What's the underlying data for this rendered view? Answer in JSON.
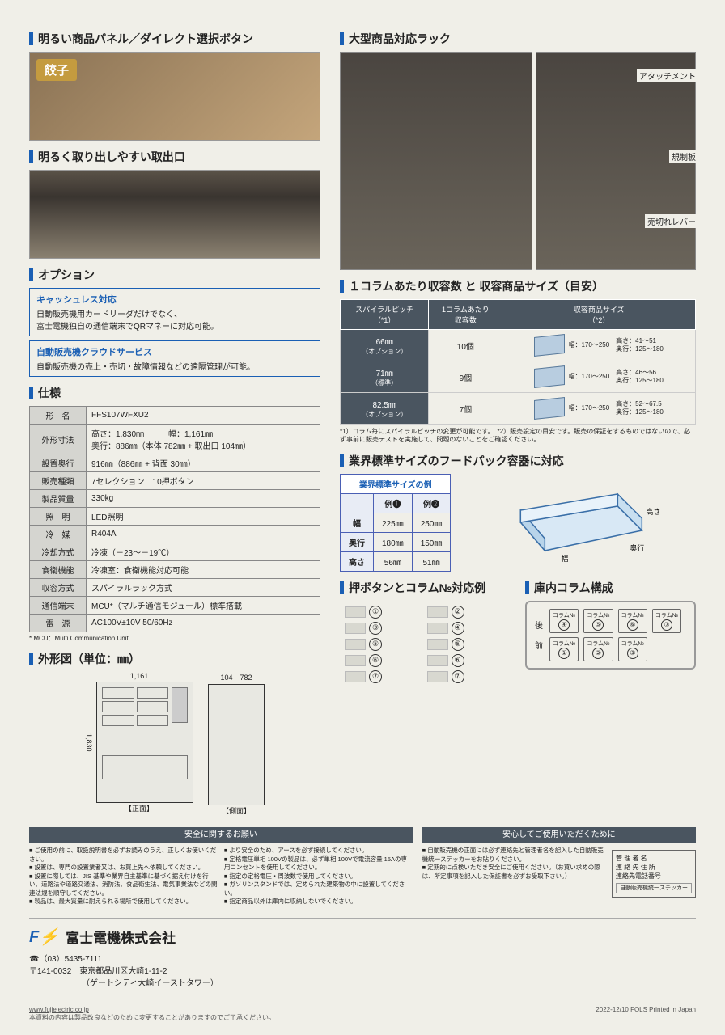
{
  "h": {
    "panel": "明るい商品パネル／ダイレクト選択ボタン",
    "outlet": "明るく取り出しやすい取出口",
    "rack": "大型商品対応ラック",
    "option": "オプション",
    "spec": "仕様",
    "diagram": "外形図（単位：㎜）",
    "capacity": "１コラムあたり収容数 と 収容商品サイズ（目安）",
    "foodpack": "業界標準サイズのフードパック容器に対応",
    "btncol": "押ボタンとコラム№対応例",
    "colstruct": "庫内コラム構成"
  },
  "gyoza": "餃子",
  "rack_labels": [
    "アタッチメント",
    "規制板",
    "売切れレバー"
  ],
  "options": [
    {
      "t": "キャッシュレス対応",
      "d": "自動販売機用カードリーダだけでなく、\n富士電機独自の通信端末でQRマネーに対応可能。"
    },
    {
      "t": "自動販売機クラウドサービス",
      "d": "自動販売機の売上・売切・故障情報などの遠隔管理が可能。"
    }
  ],
  "spec": [
    [
      "形　名",
      "FFS107WFXU2"
    ],
    [
      "外形寸法",
      "高さ：1,830㎜　　　幅：1,161㎜\n奥行：886㎜（本体 782㎜ + 取出口 104㎜）"
    ],
    [
      "設置奥行",
      "916㎜（886㎜ + 背面 30㎜）"
    ],
    [
      "販売種類",
      "7セレクション　10押ボタン"
    ],
    [
      "製品質量",
      "330kg"
    ],
    [
      "照　明",
      "LED照明"
    ],
    [
      "冷　媒",
      "R404A"
    ],
    [
      "冷却方式",
      "冷凍（－23～－19℃）"
    ],
    [
      "食衛機能",
      "冷凍室：食衛機能対応可能"
    ],
    [
      "収容方式",
      "スパイラルラック方式"
    ],
    [
      "通信端末",
      "MCU*（マルチ通信モジュール）標準搭載"
    ],
    [
      "電　源",
      "AC100V±10V 50/60Hz"
    ]
  ],
  "spec_note": "* MCU：Multi Communication Unit",
  "diagram": {
    "w": "1,161",
    "h": "1,830",
    "d1": "104",
    "d2": "782",
    "front": "【正面】",
    "side": "【側面】"
  },
  "cap_head": [
    "スパイラルピッチ\n（*1）",
    "1コラムあたり\n収容数",
    "収容商品サイズ\n（*2）"
  ],
  "cap": [
    {
      "p": "66㎜",
      "ps": "（オプション）",
      "n": "10個",
      "w": "幅：170～250",
      "h": "高さ：41～51",
      "d": "奥行：125～180"
    },
    {
      "p": "71㎜",
      "ps": "（標準）",
      "n": "9個",
      "w": "幅：170～250",
      "h": "高さ：46～56",
      "d": "奥行：125～180"
    },
    {
      "p": "82.5㎜",
      "ps": "（オプション）",
      "n": "7個",
      "w": "幅：170～250",
      "h": "高さ：52～67.5",
      "d": "奥行：125～180"
    }
  ],
  "cap_note": "*1）コラム毎にスパイラルピッチの変更が可能です。　*2）販売設定の目安です。販売の保証をするものではないので、必ず事前に販売テストを実施して、問題のないことをご確認ください。",
  "std_title": "業界標準サイズの例",
  "std_head": [
    "",
    "例❶",
    "例❷"
  ],
  "std": [
    [
      "幅",
      "225㎜",
      "250㎜"
    ],
    [
      "奥行",
      "180㎜",
      "150㎜"
    ],
    [
      "高さ",
      "56㎜",
      "51㎜"
    ]
  ],
  "std_dims": [
    "幅",
    "奥行",
    "高さ"
  ],
  "btns": [
    "①",
    "②",
    "③",
    "④",
    "⑤",
    "⑤",
    "⑥",
    "⑥",
    "⑦",
    "⑦"
  ],
  "colstruct": {
    "back": "後",
    "front": "前",
    "row1": [
      "④",
      "⑤",
      "⑥",
      "⑦"
    ],
    "row2": [
      "①",
      "②",
      "③"
    ],
    "lbl": "コラム№"
  },
  "safety": {
    "h1": "安全に関するお願い",
    "h2": "安心してご使用いただくために",
    "c1": [
      "ご使用の前に、取扱説明書を必ずお読みのうえ、正しくお使いください。",
      "設置は、専門の設置業者又は、お買上先へ依頼してください。",
      "設置に際しては、JIS 基準や業界自主基準に基づく据え付けを行い、道路法や道路交通法、消防法、食品衛生法、電気事業法などの関連法規を順守してください。",
      "製品は、最大質量に耐えられる場所で使用してください。"
    ],
    "c2": [
      "より安全のため、アースを必ず接続してください。",
      "定格電圧単相 100Vの製品は、必ず単相 100Vで電流容量 15Aの専用コンセントを使用してください。",
      "指定の定格電圧・周波数で使用してください。",
      "ガソリンスタンドでは、定められた建築物の中に設置してください。",
      "指定商品以外は庫内に収納しないでください。"
    ],
    "c3": [
      "自動販売機の正面には必ず連絡先と管理者名を記入した自動販売機統一ステッカーをお貼りください。",
      "定期的に点検いただき安全にご使用ください。（お買い求めの際は、所定事項を記入した保証書を必ずお受取下さい。）"
    ],
    "mgr": [
      "管 理 者 名",
      "連 絡 先 住 所",
      "連絡先電話番号"
    ],
    "sticker": "自動販売機統一ステッカー"
  },
  "footer": {
    "company": "富士電機株式会社",
    "tel": "☎（03）5435-7111",
    "addr": "〒141-0032　東京都品川区大崎1-11-2\n　　　　　　　（ゲートシティ大崎イーストタワー）",
    "url": "www.fujielectric.co.jp",
    "disclaimer": "本資料の内容は製品改良などのために変更することがありますのでご了承ください。",
    "print": "2022-12/10 FOLS Printed in Japan"
  }
}
